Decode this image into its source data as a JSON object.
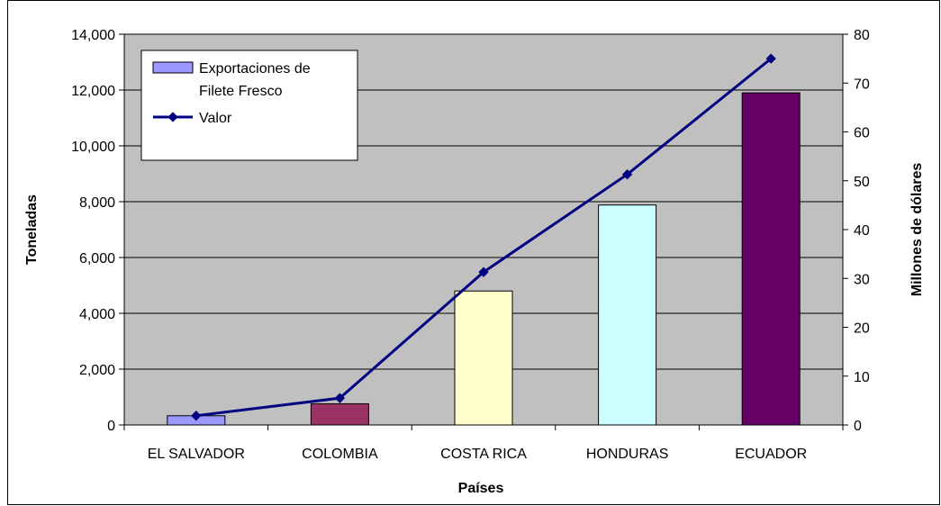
{
  "chart_data": {
    "type": "bar",
    "categories": [
      "EL SALVADOR",
      "COLOMBIA",
      "COSTA RICA",
      "HONDURAS",
      "ECUADOR"
    ],
    "series": [
      {
        "name": "Exportaciones de Filete Fresco",
        "type": "bar",
        "axis": "left",
        "values": [
          330,
          760,
          4800,
          7880,
          11900
        ],
        "colors": [
          "#9999ff",
          "#993366",
          "#ffffcc",
          "#ccffff",
          "#660066"
        ]
      },
      {
        "name": "Valor",
        "type": "line",
        "axis": "right",
        "values": [
          1.9,
          5.5,
          31.3,
          51.3,
          75
        ],
        "color": "#000080"
      }
    ],
    "xlabel": "Países",
    "ylabel": "Toneladas",
    "y2label": "Millones de dólares",
    "ylim": [
      0,
      14000
    ],
    "y2lim": [
      0,
      80
    ],
    "yticks": [
      "0",
      "2,000",
      "4,000",
      "6,000",
      "8,000",
      "10,000",
      "12,000",
      "14,000"
    ],
    "y2ticks": [
      "0",
      "10",
      "20",
      "30",
      "40",
      "50",
      "60",
      "70",
      "80"
    ],
    "legend": {
      "placement": "top-left",
      "bar_label_line1": "Exportaciones de",
      "bar_label_line2": "Filete Fresco",
      "line_label": "Valor"
    },
    "plot_background": "#c0c0c0",
    "grid": true
  }
}
